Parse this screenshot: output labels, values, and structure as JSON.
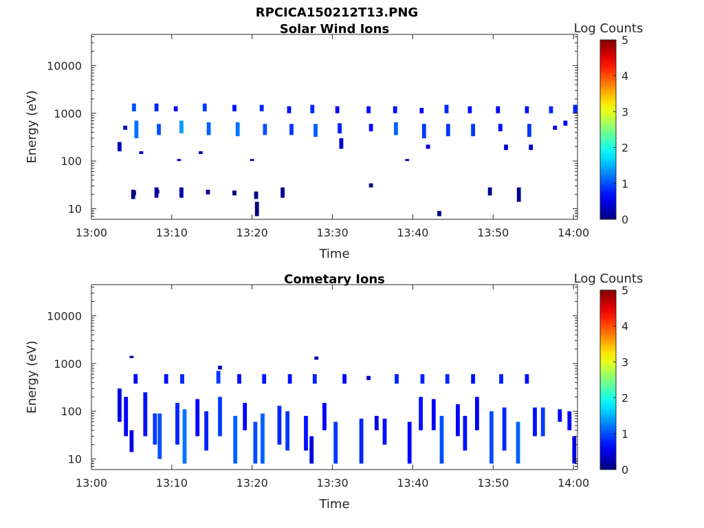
{
  "figure": {
    "title": "RPCICA150212T13.PNG"
  },
  "chart_data": [
    {
      "type": "heatmap",
      "title": "Solar Wind Ions",
      "xlabel": "Time",
      "ylabel": "Energy (eV)",
      "x_ticks": [
        "13:00",
        "13:10",
        "13:20",
        "13:30",
        "13:40",
        "13:50",
        "14:00"
      ],
      "xlim_minutes": [
        0,
        60.5
      ],
      "y_scale": "log",
      "ylim": [
        6,
        45000
      ],
      "y_ticks": [
        10,
        100,
        1000,
        10000
      ],
      "y_tick_labels": [
        "10",
        "100",
        "1000",
        "10000"
      ],
      "colorbar": {
        "label": "Log Counts",
        "range": [
          0,
          5
        ],
        "ticks": [
          "0",
          "1",
          "2",
          "3",
          "4",
          "5"
        ],
        "colormap": "jet"
      },
      "cells": [
        [
          5.2,
          16,
          25,
          0.1
        ],
        [
          5.3,
          19,
          24,
          0.0
        ],
        [
          8.1,
          17,
          28,
          0.2
        ],
        [
          8.2,
          21,
          25,
          0.1
        ],
        [
          11.2,
          17,
          28,
          0.2
        ],
        [
          14.5,
          20,
          25,
          0.1
        ],
        [
          17.8,
          19,
          24,
          0.0
        ],
        [
          20.5,
          16,
          23,
          0.0
        ],
        [
          20.6,
          7,
          14,
          0.0
        ],
        [
          23.8,
          17,
          28,
          0.1
        ],
        [
          34.8,
          28,
          34,
          0.0
        ],
        [
          43.3,
          7,
          9,
          0.0
        ],
        [
          49.6,
          19,
          28,
          0.1
        ],
        [
          53.2,
          14,
          28,
          0.1
        ],
        [
          3.5,
          160,
          250,
          0.3
        ],
        [
          4.2,
          450,
          550,
          0.4
        ],
        [
          5.3,
          1100,
          1600,
          1.0
        ],
        [
          5.6,
          300,
          700,
          1.2
        ],
        [
          6.2,
          140,
          160,
          0.5
        ],
        [
          8.1,
          1100,
          1600,
          0.8
        ],
        [
          8.4,
          350,
          600,
          1.0
        ],
        [
          10.5,
          1100,
          1400,
          0.6
        ],
        [
          11.2,
          380,
          700,
          1.4
        ],
        [
          10.9,
          100,
          110,
          0.4
        ],
        [
          14.1,
          1100,
          1600,
          0.9
        ],
        [
          14.6,
          350,
          650,
          1.1
        ],
        [
          13.6,
          140,
          160,
          0.3
        ],
        [
          17.8,
          1100,
          1500,
          0.7
        ],
        [
          18.2,
          330,
          650,
          1.2
        ],
        [
          21.2,
          1100,
          1500,
          0.8
        ],
        [
          21.6,
          350,
          600,
          1.0
        ],
        [
          20.0,
          100,
          110,
          0.3
        ],
        [
          24.6,
          1000,
          1400,
          0.7
        ],
        [
          24.9,
          350,
          600,
          0.9
        ],
        [
          27.5,
          1000,
          1500,
          0.8
        ],
        [
          27.9,
          320,
          600,
          1.1
        ],
        [
          30.6,
          1000,
          1400,
          0.6
        ],
        [
          30.9,
          380,
          620,
          0.8
        ],
        [
          31.1,
          180,
          300,
          0.4
        ],
        [
          34.5,
          1000,
          1400,
          0.7
        ],
        [
          34.8,
          420,
          600,
          0.6
        ],
        [
          37.8,
          1000,
          1400,
          0.7
        ],
        [
          37.9,
          350,
          650,
          1.1
        ],
        [
          39.3,
          100,
          110,
          0.3
        ],
        [
          41.1,
          1000,
          1300,
          0.6
        ],
        [
          41.4,
          300,
          600,
          0.9
        ],
        [
          41.9,
          180,
          220,
          0.4
        ],
        [
          44.2,
          1000,
          1500,
          0.8
        ],
        [
          44.4,
          330,
          600,
          0.9
        ],
        [
          47.1,
          1000,
          1400,
          0.7
        ],
        [
          47.5,
          330,
          600,
          0.9
        ],
        [
          50.6,
          1000,
          1400,
          0.6
        ],
        [
          50.9,
          420,
          600,
          0.7
        ],
        [
          51.6,
          170,
          220,
          0.4
        ],
        [
          54.2,
          1000,
          1400,
          0.7
        ],
        [
          54.5,
          320,
          600,
          0.9
        ],
        [
          54.7,
          170,
          220,
          0.4
        ],
        [
          57.2,
          1000,
          1400,
          0.8
        ],
        [
          57.7,
          450,
          550,
          0.5
        ],
        [
          59.0,
          550,
          700,
          0.6
        ],
        [
          60.2,
          1000,
          1500,
          0.8
        ]
      ]
    },
    {
      "type": "heatmap",
      "title": "Cometary Ions",
      "xlabel": "Time",
      "ylabel": "Energy (eV)",
      "x_ticks": [
        "13:00",
        "13:10",
        "13:20",
        "13:30",
        "13:40",
        "13:50",
        "14:00"
      ],
      "xlim_minutes": [
        0,
        60.5
      ],
      "y_scale": "log",
      "ylim": [
        6,
        45000
      ],
      "y_ticks": [
        10,
        100,
        1000,
        10000
      ],
      "y_tick_labels": [
        "10",
        "100",
        "1000",
        "10000"
      ],
      "colorbar": {
        "label": "Log Counts",
        "range": [
          0,
          5
        ],
        "ticks": [
          "0",
          "1",
          "2",
          "3",
          "4",
          "5"
        ],
        "colormap": "jet"
      },
      "cells": [
        [
          5.0,
          1300,
          1450,
          0.2
        ],
        [
          28.0,
          1200,
          1400,
          0.2
        ],
        [
          16.0,
          750,
          900,
          0.3
        ],
        [
          5.5,
          380,
          600,
          0.6
        ],
        [
          9.3,
          380,
          600,
          0.7
        ],
        [
          11.3,
          380,
          600,
          0.8
        ],
        [
          15.8,
          380,
          700,
          0.9
        ],
        [
          18.4,
          380,
          600,
          0.7
        ],
        [
          21.5,
          380,
          600,
          0.7
        ],
        [
          24.7,
          380,
          600,
          0.7
        ],
        [
          27.8,
          380,
          600,
          0.8
        ],
        [
          31.5,
          380,
          600,
          0.6
        ],
        [
          34.5,
          450,
          550,
          0.4
        ],
        [
          38.0,
          380,
          600,
          0.8
        ],
        [
          41.2,
          380,
          600,
          0.8
        ],
        [
          44.3,
          380,
          600,
          0.8
        ],
        [
          47.5,
          380,
          600,
          0.7
        ],
        [
          51.0,
          380,
          600,
          0.8
        ],
        [
          54.2,
          380,
          600,
          0.7
        ],
        [
          3.5,
          60,
          300,
          0.5
        ],
        [
          4.3,
          30,
          200,
          0.6
        ],
        [
          5.0,
          14,
          40,
          0.5
        ],
        [
          6.7,
          30,
          250,
          0.7
        ],
        [
          7.9,
          20,
          90,
          0.9
        ],
        [
          8.5,
          10,
          90,
          1.0
        ],
        [
          10.7,
          20,
          150,
          0.8
        ],
        [
          11.6,
          8,
          110,
          1.2
        ],
        [
          13.2,
          30,
          180,
          0.6
        ],
        [
          14.3,
          15,
          100,
          0.8
        ],
        [
          16.0,
          30,
          200,
          0.9
        ],
        [
          17.9,
          8,
          80,
          1.1
        ],
        [
          19.1,
          40,
          150,
          0.6
        ],
        [
          20.4,
          8,
          60,
          1.0
        ],
        [
          21.3,
          8,
          90,
          1.1
        ],
        [
          23.4,
          20,
          130,
          0.8
        ],
        [
          24.4,
          15,
          100,
          0.9
        ],
        [
          26.7,
          15,
          80,
          0.7
        ],
        [
          27.4,
          8,
          30,
          0.5
        ],
        [
          29.0,
          40,
          150,
          0.6
        ],
        [
          30.4,
          8,
          60,
          0.9
        ],
        [
          33.6,
          8,
          70,
          0.8
        ],
        [
          35.5,
          40,
          80,
          0.5
        ],
        [
          36.5,
          20,
          70,
          0.7
        ],
        [
          39.6,
          8,
          60,
          0.6
        ],
        [
          41.0,
          40,
          200,
          0.7
        ],
        [
          42.6,
          40,
          180,
          0.6
        ],
        [
          43.6,
          8,
          80,
          1.0
        ],
        [
          45.6,
          30,
          140,
          0.6
        ],
        [
          46.5,
          15,
          80,
          0.7
        ],
        [
          48.0,
          40,
          200,
          0.6
        ],
        [
          49.8,
          8,
          100,
          1.0
        ],
        [
          51.4,
          15,
          120,
          0.8
        ],
        [
          53.1,
          8,
          60,
          1.1
        ],
        [
          55.2,
          30,
          120,
          0.7
        ],
        [
          56.2,
          30,
          120,
          0.9
        ],
        [
          58.3,
          60,
          110,
          0.6
        ],
        [
          59.5,
          40,
          100,
          0.6
        ],
        [
          60.1,
          8,
          30,
          0.5
        ]
      ]
    }
  ]
}
